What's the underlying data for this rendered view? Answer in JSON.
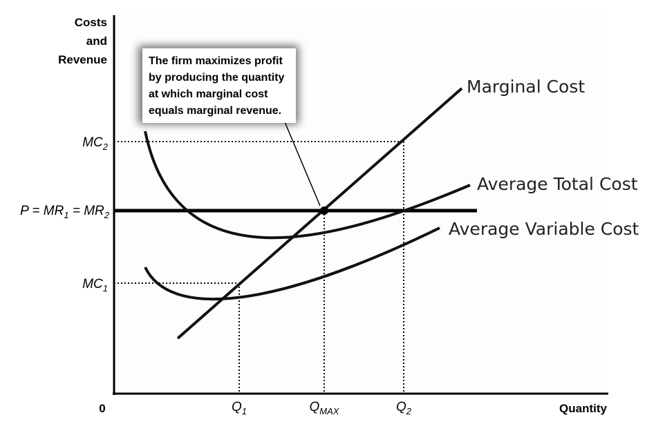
{
  "y_axis": {
    "title_lines": [
      "Costs",
      "and",
      "Revenue"
    ]
  },
  "x_axis": {
    "title": "Quantity",
    "origin": "0"
  },
  "y_ticks": {
    "mc2": {
      "main": "MC",
      "sub": "2"
    },
    "price": {
      "p": "P",
      "eq1": " = ",
      "mr": "MR",
      "sub1": "1",
      "eq2": " = ",
      "mr2": "MR",
      "sub2": "2"
    },
    "mc1": {
      "main": "MC",
      "sub": "1"
    }
  },
  "x_ticks": {
    "q1": {
      "main": "Q",
      "sub": "1"
    },
    "qmax": {
      "main": "Q",
      "sub": "MAX"
    },
    "q2": {
      "main": "Q",
      "sub": "2"
    }
  },
  "curves": {
    "mc": "Marginal Cost",
    "atc": "Average Total Cost",
    "avc": "Average Variable Cost"
  },
  "callout": {
    "lines": [
      "The firm maximizes profit",
      "by producing the quantity",
      "at which marginal cost",
      "equals marginal revenue."
    ]
  }
}
